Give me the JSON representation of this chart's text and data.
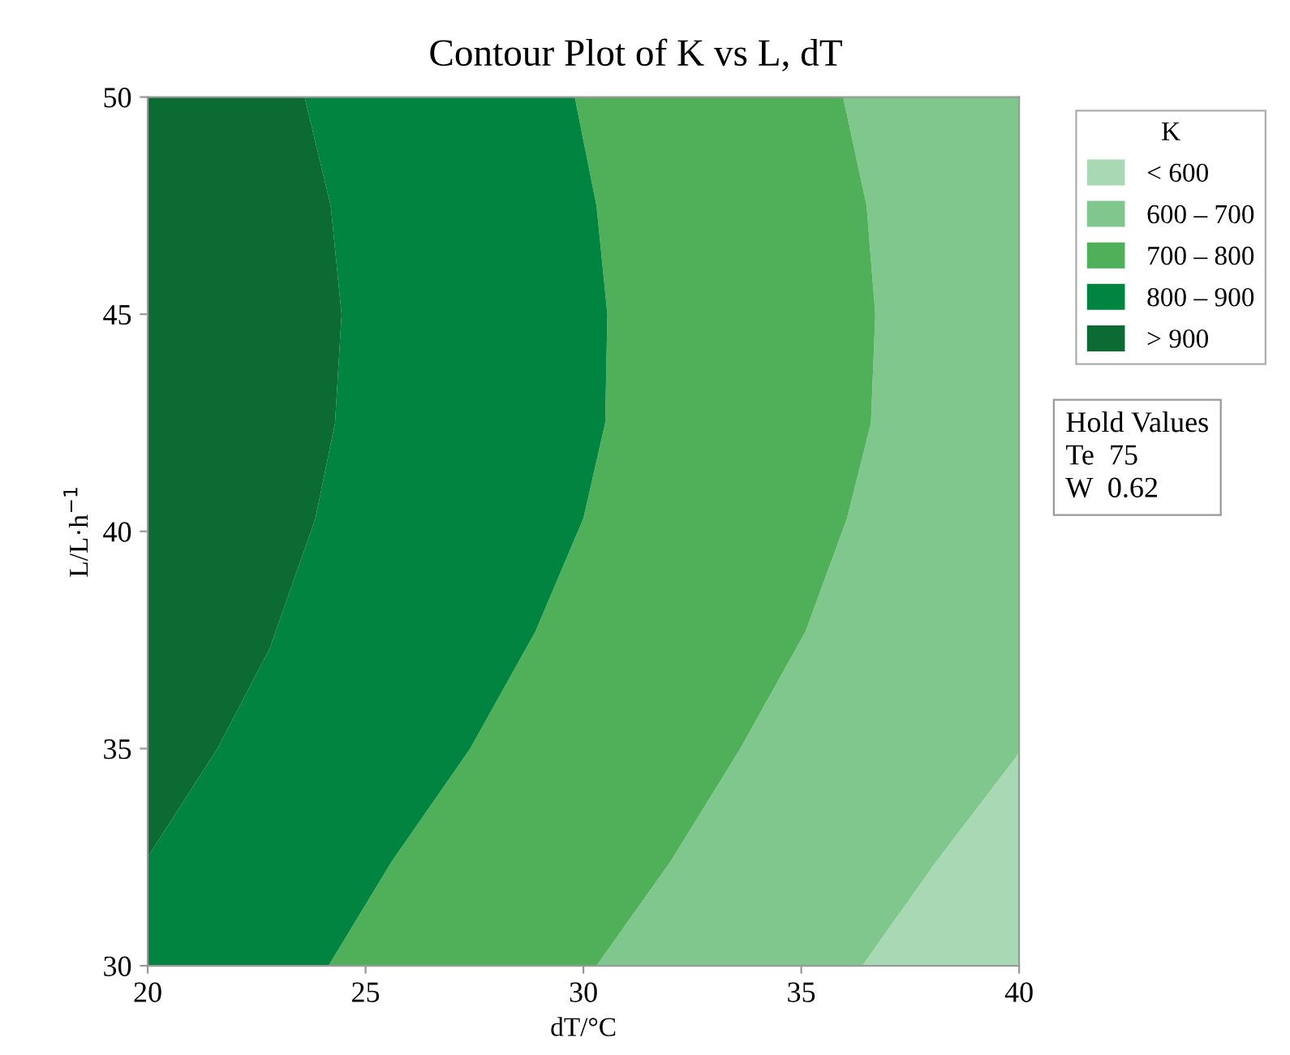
{
  "chart_data": {
    "type": "area",
    "title": "Contour Plot of K vs L, dT",
    "xlabel": "dT/°C",
    "ylabel": "L/L·h$^{−1}$",
    "legend_title": "K",
    "legend": "top right",
    "xlim": [
      20,
      40
    ],
    "ylim": [
      30,
      50
    ],
    "xticks": [
      20,
      25,
      30,
      35,
      40
    ],
    "yticks": [
      30,
      35,
      40,
      45,
      50
    ],
    "grid": false,
    "series": [
      {
        "name": "< 600",
        "color": "#a8d8b4",
        "x": [
          40,
          38.1,
          36.4,
          40
        ],
        "values": [
          34.9,
          32.4,
          30,
          30
        ]
      },
      {
        "name": "600 – 700",
        "color": "#80c78d",
        "x": [
          40,
          40,
          38.1,
          36.4,
          30.3,
          32.0,
          33.6,
          35.1,
          36.05,
          36.6,
          36.7,
          36.5,
          35.96
        ],
        "values": [
          50,
          34.9,
          32.4,
          30,
          30,
          32.4,
          35,
          37.7,
          40.3,
          42.5,
          45,
          47.5,
          50
        ]
      },
      {
        "name": "700 – 800",
        "color": "#50b05a",
        "x": [
          35.96,
          36.5,
          36.7,
          36.6,
          36.05,
          35.1,
          33.6,
          32.0,
          30.3,
          24.15,
          25.6,
          27.4,
          28.9,
          30.0,
          30.5,
          30.55,
          30.3,
          29.8
        ],
        "values": [
          50,
          47.5,
          45,
          42.5,
          40.3,
          37.7,
          35,
          32.4,
          30,
          30,
          32.4,
          35,
          37.7,
          40.3,
          42.5,
          45,
          47.5,
          50
        ]
      },
      {
        "name": "800 – 900",
        "color": "#008440",
        "x": [
          29.8,
          30.3,
          30.55,
          30.5,
          30.0,
          28.9,
          27.4,
          25.6,
          24.15,
          20,
          20,
          21.6,
          22.8,
          23.85,
          24.3,
          24.45,
          24.2,
          23.6
        ],
        "values": [
          50,
          47.5,
          45,
          42.5,
          40.3,
          37.7,
          35,
          32.4,
          30,
          30,
          32.5,
          35,
          37.3,
          40.3,
          42.5,
          45,
          47.5,
          50
        ]
      },
      {
        "name": "> 900",
        "color": "#0b6b33",
        "x": [
          20,
          23.6,
          24.2,
          24.45,
          24.3,
          23.85,
          22.8,
          21.6,
          20
        ],
        "values": [
          50,
          50,
          47.5,
          45,
          42.5,
          40.3,
          37.3,
          35,
          32.5
        ]
      }
    ],
    "annotations": [
      "Hold Values",
      "Te  75",
      "W  0.62"
    ]
  }
}
